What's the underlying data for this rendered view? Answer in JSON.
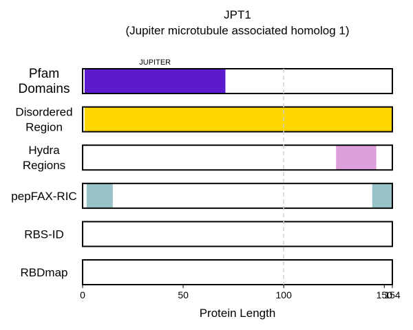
{
  "chart_data": {
    "type": "bar",
    "title": "JPT1",
    "subtitle": "(Jupiter microtubule associated homolog 1)",
    "xlabel": "Protein Length",
    "xlim": [
      0,
      154
    ],
    "x_ticks": [
      0,
      50,
      100,
      150,
      154
    ],
    "reference_line_x": 100,
    "tracks": [
      {
        "name": "Pfam\nDomains",
        "segments": [
          {
            "start": 1,
            "end": 71,
            "color": "#5b1acb",
            "label": "JUPITER"
          }
        ]
      },
      {
        "name": "Disordered\nRegion",
        "segments": [
          {
            "start": 1,
            "end": 154,
            "color": "#ffd700",
            "label": ""
          }
        ]
      },
      {
        "name": "Hydra\nRegions",
        "segments": [
          {
            "start": 126,
            "end": 146,
            "color": "#dea0dc",
            "label": ""
          }
        ]
      },
      {
        "name": "pepFAX-RIC",
        "segments": [
          {
            "start": 2,
            "end": 15,
            "color": "#97c3c8",
            "label": ""
          },
          {
            "start": 144,
            "end": 154,
            "color": "#97c3c8",
            "label": ""
          }
        ]
      },
      {
        "name": "RBS-ID",
        "segments": []
      },
      {
        "name": "RBDmap",
        "segments": []
      }
    ]
  }
}
